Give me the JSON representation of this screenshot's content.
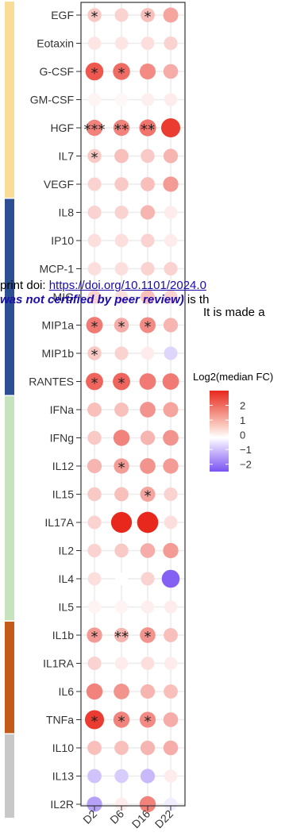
{
  "overlay": {
    "line1_prefix": "print doi: ",
    "line1_link": "https://doi.org/10.1101/2024.0",
    "line2_bold": "was not certified by peer review)",
    "line2_rest": " is th",
    "line3": "It is made a"
  },
  "chart_data": {
    "type": "dot-heatmap",
    "x": [
      "D2",
      "D6",
      "D16",
      "D22"
    ],
    "y": [
      "EGF",
      "Eotaxin",
      "G-CSF",
      "GM-CSF",
      "HGF",
      "IL7",
      "VEGF",
      "IL8",
      "IP10",
      "MCP-1",
      "MIG",
      "MIP1a",
      "MIP1b",
      "RANTES",
      "IFNa",
      "IFNg",
      "IL12",
      "IL15",
      "IL17A",
      "IL2",
      "IL4",
      "IL5",
      "IL1b",
      "IL1RA",
      "IL6",
      "TNFa",
      "IL10",
      "IL13",
      "IL2R"
    ],
    "values": [
      [
        0.4,
        0.3,
        0.5,
        0.8
      ],
      [
        0.15,
        0.15,
        0.2,
        0.3
      ],
      [
        1.8,
        1.5,
        1.1,
        0.7
      ],
      [
        0.05,
        0.03,
        0.08,
        0.1
      ],
      [
        1.2,
        1.2,
        1.4,
        2.2
      ],
      [
        0.4,
        0.5,
        0.4,
        0.6
      ],
      [
        0.3,
        0.4,
        0.5,
        0.9
      ],
      [
        0.3,
        0.3,
        0.6,
        0.1
      ],
      [
        0.2,
        0.2,
        0.3,
        0.1
      ],
      [
        0.2,
        0.2,
        0.3,
        0.3
      ],
      [
        0.3,
        0.2,
        0.5,
        0.3
      ],
      [
        1.3,
        0.7,
        1.1,
        0.6
      ],
      [
        0.4,
        0.3,
        0.1,
        -0.3
      ],
      [
        1.6,
        1.6,
        1.3,
        1.3
      ],
      [
        0.5,
        0.5,
        1.0,
        0.8
      ],
      [
        0.4,
        1.2,
        0.6,
        1.0
      ],
      [
        0.6,
        0.9,
        1.0,
        0.9
      ],
      [
        0.4,
        0.5,
        0.8,
        0.3
      ],
      [
        0.3,
        2.8,
        2.9,
        0.2
      ],
      [
        0.3,
        0.4,
        0.7,
        0.9
      ],
      [
        0.2,
        0.0,
        0.3,
        -1.8
      ],
      [
        0.05,
        0.05,
        0.08,
        0.1
      ],
      [
        0.9,
        0.6,
        1.0,
        0.5
      ],
      [
        0.3,
        0.1,
        0.2,
        0.1
      ],
      [
        1.2,
        1.0,
        0.6,
        0.5
      ],
      [
        2.2,
        1.2,
        1.1,
        0.7
      ],
      [
        0.5,
        0.5,
        0.6,
        0.7
      ],
      [
        -0.5,
        -0.4,
        -0.6,
        0.1
      ],
      [
        -0.9,
        0.1,
        1.2,
        -0.1
      ]
    ],
    "significance": [
      [
        "*",
        "",
        "*",
        ""
      ],
      [
        "",
        "",
        "",
        ""
      ],
      [
        "*",
        "*",
        "",
        ""
      ],
      [
        "",
        "",
        "",
        ""
      ],
      [
        "***",
        "**",
        "**",
        ""
      ],
      [
        "*",
        "",
        "",
        ""
      ],
      [
        "",
        "",
        "",
        ""
      ],
      [
        "",
        "",
        "",
        ""
      ],
      [
        "",
        "",
        "",
        ""
      ],
      [
        "",
        "",
        "",
        ""
      ],
      [
        "",
        "",
        "",
        ""
      ],
      [
        "*",
        "*",
        "*",
        ""
      ],
      [
        "*",
        "",
        "",
        ""
      ],
      [
        "*",
        "*",
        "",
        ""
      ],
      [
        "",
        "",
        "",
        ""
      ],
      [
        "",
        "",
        "",
        ""
      ],
      [
        "",
        "*",
        "",
        ""
      ],
      [
        "",
        "",
        "*",
        ""
      ],
      [
        "",
        "",
        "",
        ""
      ],
      [
        "",
        "",
        "",
        ""
      ],
      [
        "",
        "",
        "",
        ""
      ],
      [
        "",
        "",
        "",
        ""
      ],
      [
        "*",
        "**",
        "*",
        ""
      ],
      [
        "",
        "",
        "",
        ""
      ],
      [
        "",
        "",
        "",
        ""
      ],
      [
        "*",
        "*",
        "*",
        ""
      ],
      [
        "",
        "",
        "",
        ""
      ],
      [
        "",
        "",
        "",
        ""
      ],
      [
        "",
        "",
        "",
        ""
      ]
    ],
    "groups": [
      {
        "rows": [
          0,
          6
        ],
        "color": "#f9dc95"
      },
      {
        "rows": [
          7,
          13
        ],
        "color": "#2c4e92"
      },
      {
        "rows": [
          14,
          21
        ],
        "color": "#c6e3be"
      },
      {
        "rows": [
          22,
          25
        ],
        "color": "#c35a19"
      },
      {
        "rows": [
          26,
          28
        ],
        "color": "#c8c8c8"
      }
    ],
    "legend": {
      "title": "Log2(median FC)",
      "ticks": [
        2,
        1,
        0,
        -1,
        -2
      ],
      "range": [
        -2.5,
        3
      ],
      "placement": "right",
      "colors": {
        "high": "#e8281c",
        "mid": "#ffffff",
        "low": "#7a53f2"
      }
    }
  }
}
